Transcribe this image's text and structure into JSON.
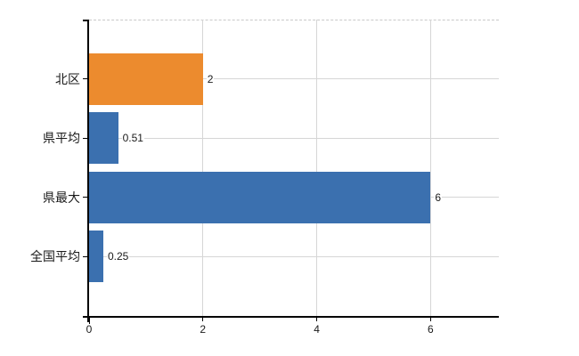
{
  "chart_data": {
    "type": "bar",
    "orientation": "horizontal",
    "title": "",
    "xlabel": "",
    "ylabel": "",
    "categories": [
      "北区",
      "県平均",
      "県最大",
      "全国平均"
    ],
    "values": [
      2,
      0.51,
      6,
      0.25
    ],
    "value_labels": [
      "2",
      "0.51",
      "6",
      "0.25"
    ],
    "bar_colors": [
      "#EC8B2E",
      "#3B70AF",
      "#3B70AF",
      "#3B70AF"
    ],
    "xticks": [
      0,
      2,
      4,
      6
    ],
    "xtick_labels": [
      "0",
      "2",
      "4",
      "6"
    ],
    "xlim": [
      0,
      7.2
    ],
    "grid": true,
    "legend": false
  },
  "style": {
    "background": "#FFFFFF",
    "bar_color_highlight": "#EC8B2E",
    "bar_color_default": "#3B70AF",
    "grid_color": "#D6D6D6",
    "top_border_color": "#C9C9C9",
    "axis_color": "#000000",
    "text_color": "#1A1A1A"
  }
}
